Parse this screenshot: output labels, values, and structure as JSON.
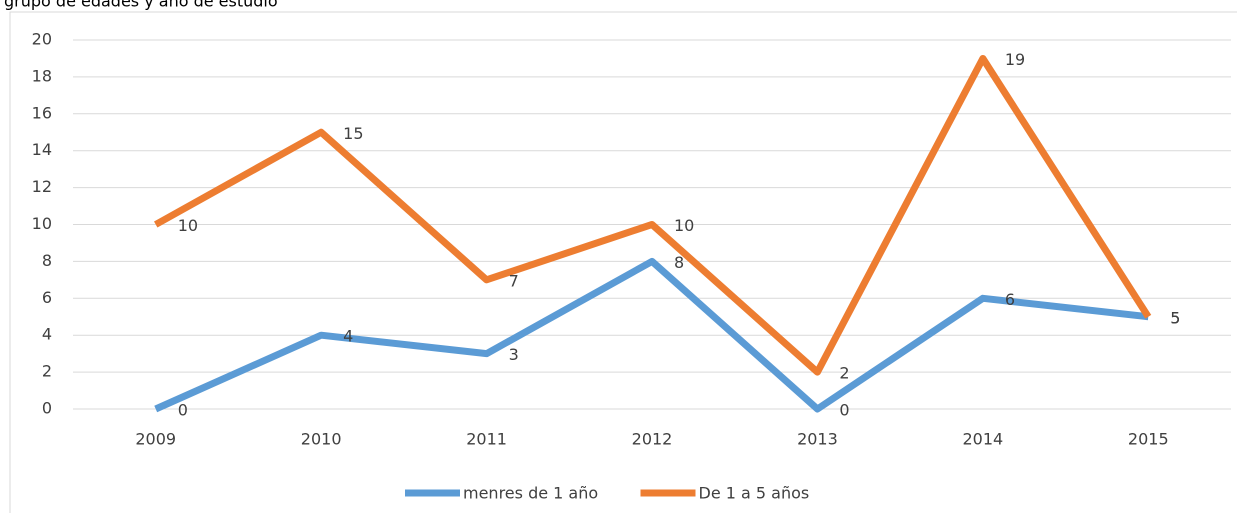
{
  "chart_data": {
    "type": "line",
    "title": "grupo de edades y año de estudio",
    "categories": [
      "2009",
      "2010",
      "2011",
      "2012",
      "2013",
      "2014",
      "2015"
    ],
    "series": [
      {
        "name": "menres de 1 año",
        "color": "#5b9bd5",
        "values": [
          0,
          4,
          3,
          8,
          0,
          6,
          5
        ]
      },
      {
        "name": "De 1 a 5 años",
        "color": "#ed7d31",
        "values": [
          10,
          15,
          7,
          10,
          2,
          19,
          5
        ]
      }
    ],
    "ylim": [
      0,
      20
    ],
    "yticks": [
      0,
      2,
      4,
      6,
      8,
      10,
      12,
      14,
      16,
      18,
      20
    ],
    "grid": true,
    "legend": "bottom"
  }
}
